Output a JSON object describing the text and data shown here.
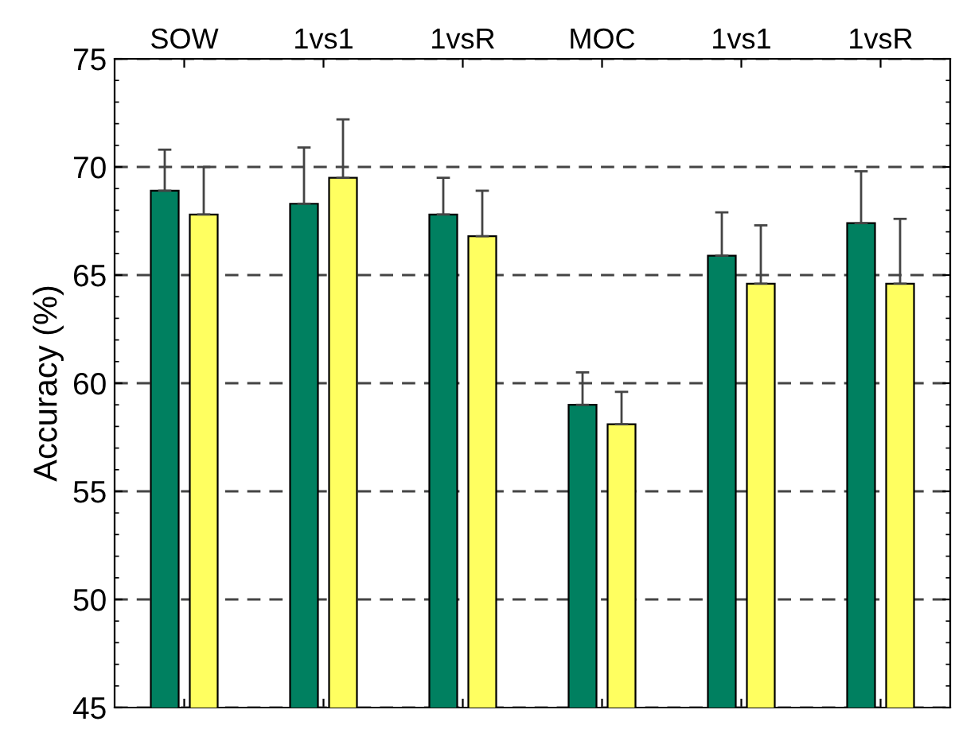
{
  "chart_data": {
    "type": "bar",
    "ylabel": "Accuracy (%)",
    "categories": [
      "SOW",
      "1vs1",
      "1vsR",
      "MOC",
      "1vs1",
      "1vsR"
    ],
    "series": [
      {
        "color": "#008060",
        "values": [
          68.9,
          68.3,
          67.8,
          59.0,
          65.9,
          67.4
        ],
        "errors": [
          [
            68.9,
            70.8
          ],
          [
            68.3,
            70.9
          ],
          [
            67.8,
            69.5
          ],
          [
            59.0,
            60.5
          ],
          [
            65.9,
            67.9
          ],
          [
            67.4,
            69.8
          ]
        ]
      },
      {
        "color": "#ffff60",
        "values": [
          67.8,
          69.5,
          66.8,
          58.1,
          64.6,
          64.6
        ],
        "errors": [
          [
            67.8,
            70.0
          ],
          [
            69.5,
            72.2
          ],
          [
            66.8,
            68.9
          ],
          [
            58.1,
            59.6
          ],
          [
            64.6,
            67.3
          ],
          [
            64.6,
            67.6
          ]
        ]
      }
    ],
    "ylim": [
      45,
      75
    ],
    "yticks": [
      45,
      50,
      55,
      60,
      65,
      70,
      75
    ],
    "grid": "y"
  }
}
